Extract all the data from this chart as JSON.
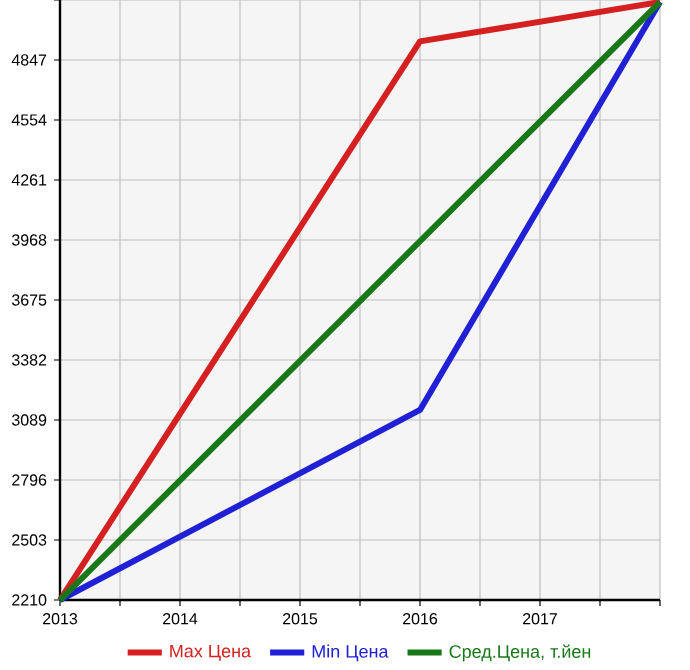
{
  "chart_data": {
    "type": "line",
    "x": [
      2013,
      2016,
      2018
    ],
    "series": [
      {
        "name": "Max Цена",
        "color": "#d42020",
        "values": [
          2210,
          4938,
          5130
        ]
      },
      {
        "name": "Min Цена",
        "color": "#2020d4",
        "values": [
          2210,
          3138,
          5130
        ]
      },
      {
        "name": "Сред.Цена, т.йен",
        "color": "#187818",
        "x": [
          2013,
          2018
        ],
        "values": [
          2210,
          5130
        ]
      }
    ],
    "xlim": [
      2013,
      2018
    ],
    "xticks": [
      2013,
      {
        "value": 2013.5,
        "label": null
      },
      2014,
      {
        "value": 2014.5,
        "label": null
      },
      2015,
      {
        "value": 2015.5,
        "label": null
      },
      2016,
      {
        "value": 2016.5,
        "label": null
      },
      2017,
      {
        "value": 2017.5,
        "label": null
      },
      {
        "value": 2018,
        "label": null
      }
    ],
    "ylim": [
      2210,
      5140
    ],
    "yticks": [
      2210,
      2503,
      2796,
      3089,
      3382,
      3675,
      3968,
      4261,
      4554,
      4847,
      {
        "value": 5140,
        "label": null
      }
    ],
    "grid": true,
    "legend": "bottom",
    "marker": "none",
    "line_style": "solid"
  }
}
